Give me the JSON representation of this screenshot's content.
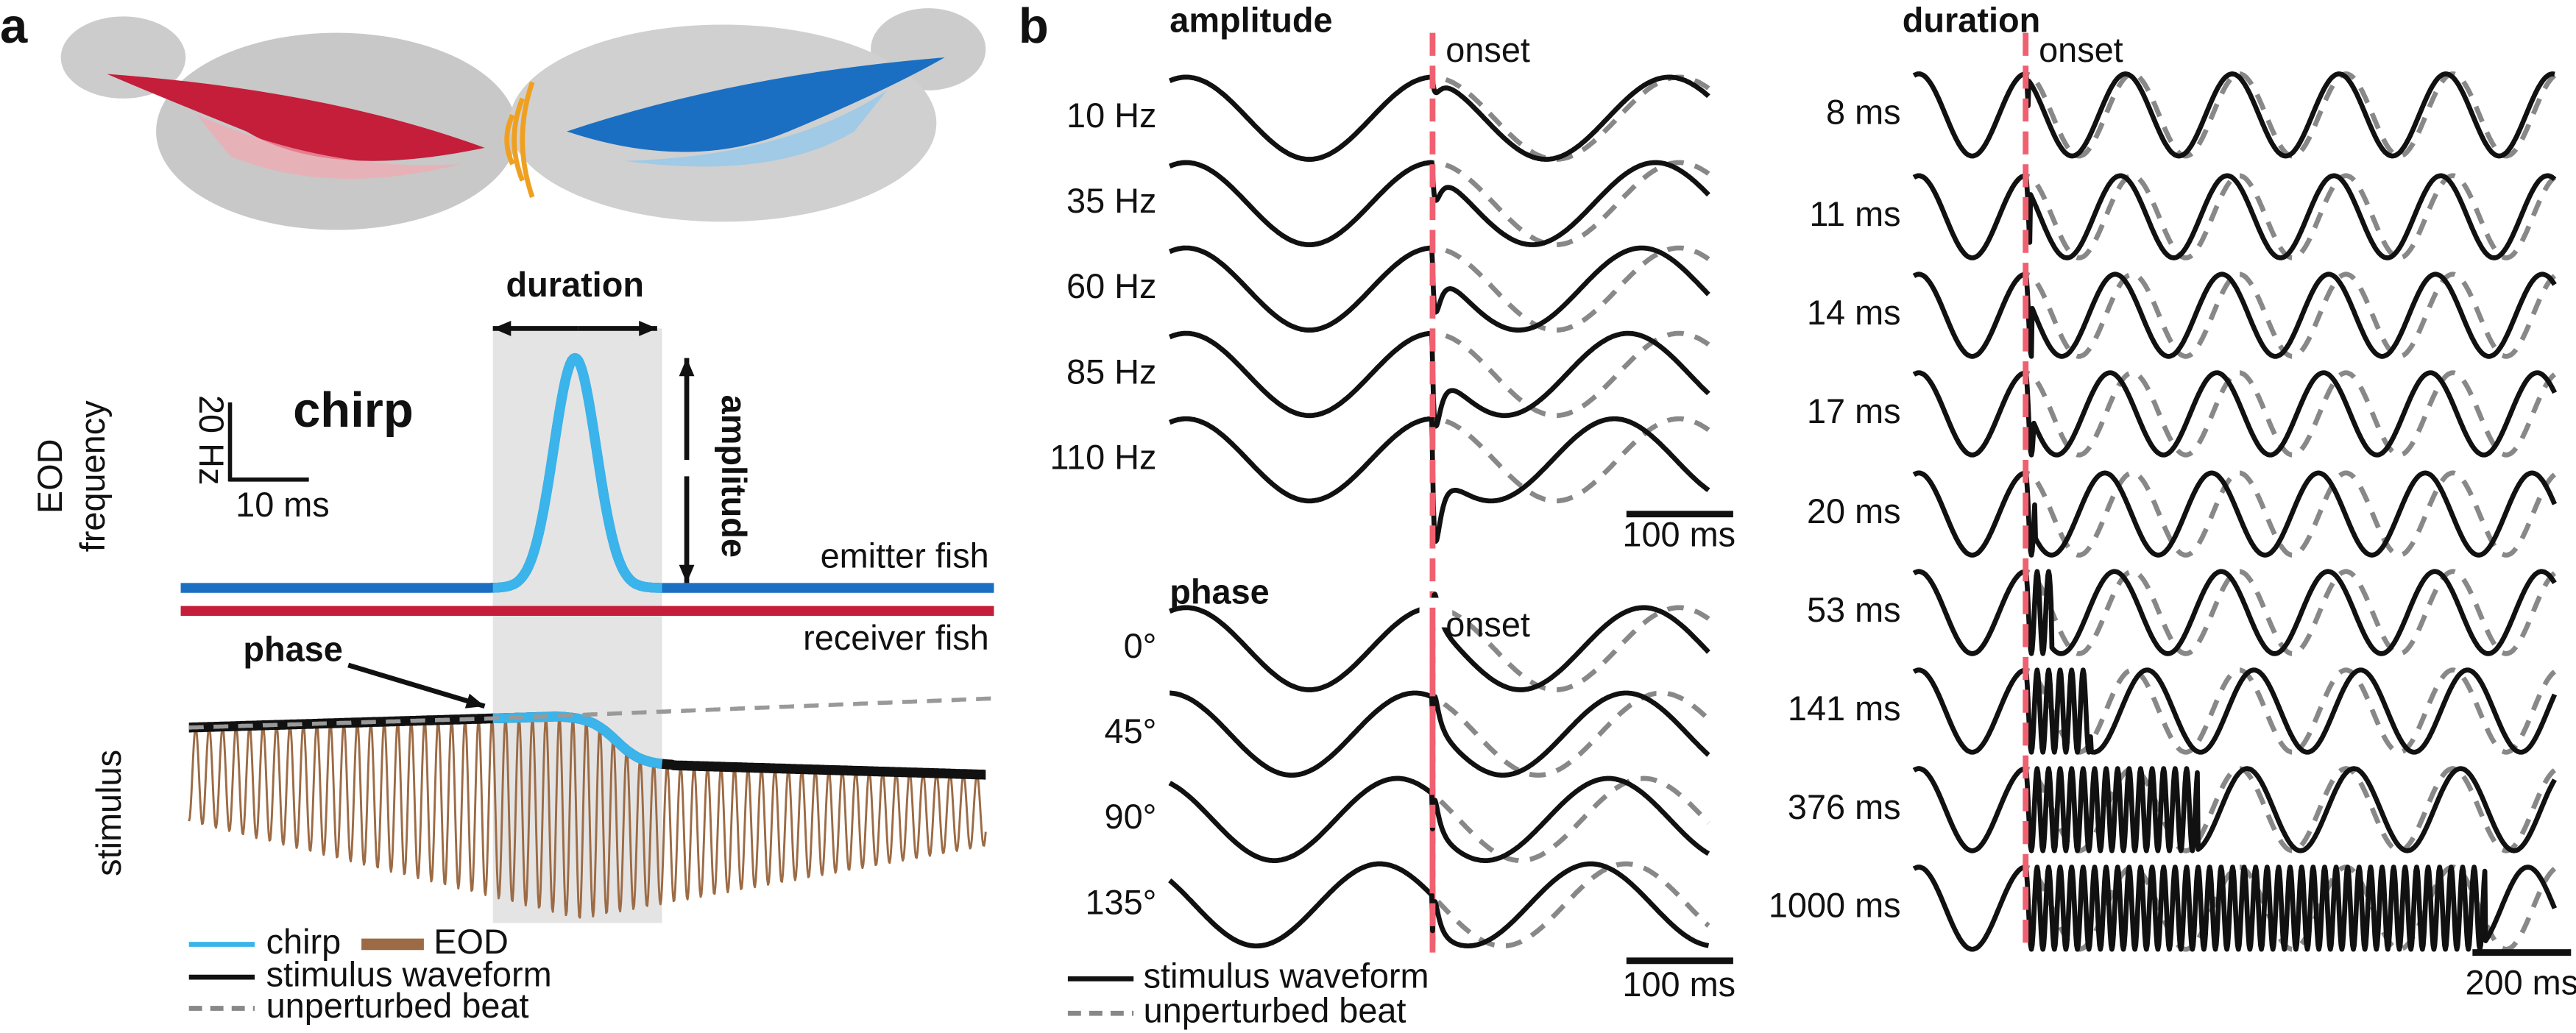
{
  "panel_a": {
    "label": "a",
    "duration": "duration",
    "chirp": "chirp",
    "amplitude": "amplitude",
    "scale_y": "20 Hz",
    "scale_x": "10 ms",
    "y_label": [
      "EOD",
      "frequency"
    ],
    "emitter": "emitter fish",
    "receiver": "receiver fish",
    "phase": "phase",
    "stimulus": "stimulus",
    "legend": [
      "chirp",
      "EOD",
      "stimulus waveform",
      "unperturbed beat"
    ]
  },
  "panel_b": {
    "label": "b",
    "amplitude": {
      "title": "amplitude",
      "onset": "onset",
      "rows": [
        "10 Hz",
        "35 Hz",
        "60 Hz",
        "85 Hz",
        "110 Hz"
      ],
      "scale": "100 ms"
    },
    "phase": {
      "title": "phase",
      "onset": "onset",
      "rows": [
        "0°",
        "45°",
        "90°",
        "135°"
      ],
      "scale": "100 ms"
    },
    "duration": {
      "title": "duration",
      "onset": "onset",
      "rows": [
        "8 ms",
        "11 ms",
        "14 ms",
        "17 ms",
        "20 ms",
        "53 ms",
        "141 ms",
        "376 ms",
        "1000 ms"
      ],
      "scale": "200 ms"
    },
    "legend": [
      "stimulus waveform",
      "unperturbed beat"
    ]
  }
}
